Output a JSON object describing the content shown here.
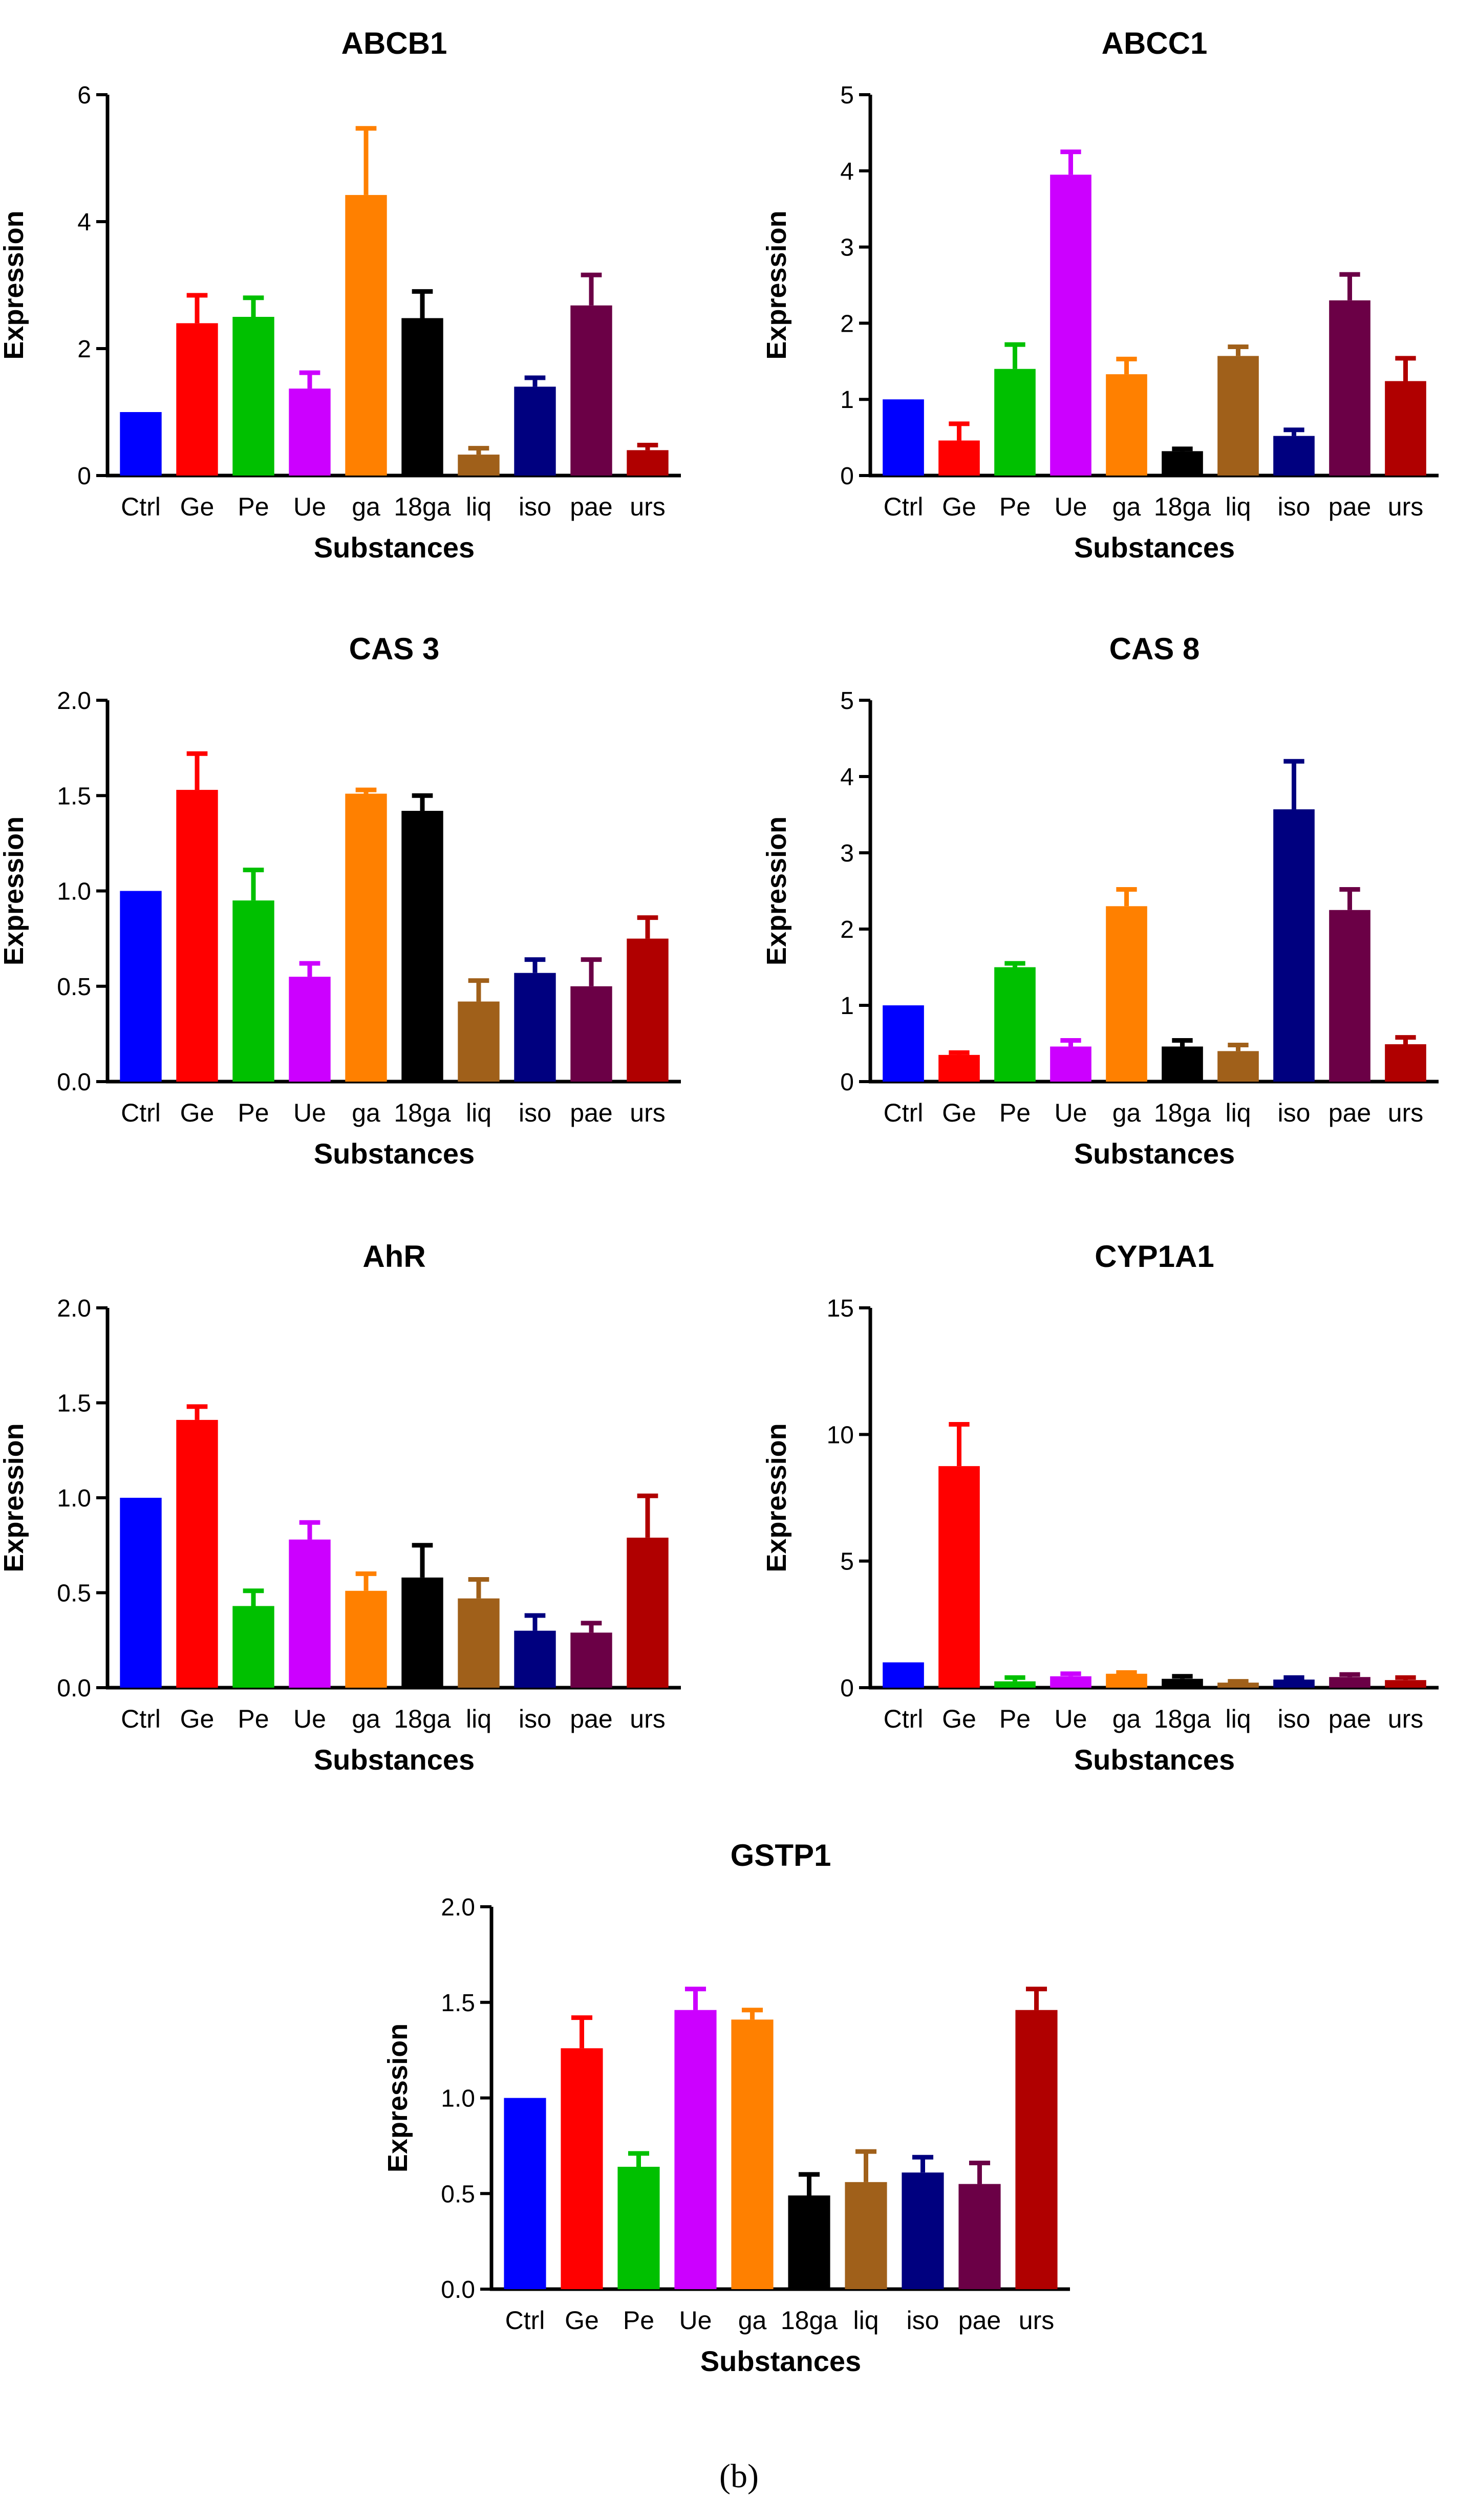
{
  "figure": {
    "caption": "(b)"
  },
  "colors": [
    "#0000ff",
    "#ff0000",
    "#00c000",
    "#cc00ff",
    "#ff8000",
    "#000000",
    "#a0601a",
    "#00007f",
    "#6b0046",
    "#b00000"
  ],
  "chart_data": [
    {
      "type": "bar",
      "title": "ABCB1",
      "xlabel": "Substances",
      "ylabel": "Expression",
      "categories": [
        "Ctrl",
        "Ge",
        "Pe",
        "Ue",
        "ga",
        "18ga",
        "liq",
        "iso",
        "pae",
        "urs"
      ],
      "values": [
        1.0,
        2.4,
        2.5,
        1.37,
        4.42,
        2.48,
        0.33,
        1.4,
        2.68,
        0.4
      ],
      "errors": [
        0,
        0.44,
        0.3,
        0.25,
        1.05,
        0.42,
        0.1,
        0.14,
        0.48,
        0.08
      ],
      "ylim": [
        0,
        6
      ],
      "yticks": [
        "0",
        "2",
        "4",
        "6"
      ]
    },
    {
      "type": "bar",
      "title": "ABCC1",
      "xlabel": "Substances",
      "ylabel": "Expression",
      "categories": [
        "Ctrl",
        "Ge",
        "Pe",
        "Ue",
        "ga",
        "18ga",
        "liq",
        "iso",
        "pae",
        "urs"
      ],
      "values": [
        1.0,
        0.46,
        1.4,
        3.95,
        1.33,
        0.32,
        1.57,
        0.52,
        2.3,
        1.24
      ],
      "errors": [
        0,
        0.22,
        0.32,
        0.3,
        0.2,
        0.03,
        0.12,
        0.08,
        0.34,
        0.3
      ],
      "ylim": [
        0,
        5
      ],
      "yticks": [
        "0",
        "1",
        "2",
        "3",
        "4",
        "5"
      ]
    },
    {
      "type": "bar",
      "title": "CAS 3",
      "xlabel": "Substances",
      "ylabel": "Expression",
      "categories": [
        "Ctrl",
        "Ge",
        "Pe",
        "Ue",
        "ga",
        "18ga",
        "liq",
        "iso",
        "pae",
        "urs"
      ],
      "values": [
        1.0,
        1.53,
        0.95,
        0.55,
        1.51,
        1.42,
        0.42,
        0.57,
        0.5,
        0.75
      ],
      "errors": [
        0,
        0.19,
        0.16,
        0.07,
        0.02,
        0.08,
        0.11,
        0.07,
        0.14,
        0.11
      ],
      "ylim": [
        0,
        2
      ],
      "yticks": [
        "0.0",
        "0.5",
        "1.0",
        "1.5",
        "2.0"
      ]
    },
    {
      "type": "bar",
      "title": "CAS 8",
      "xlabel": "Substances",
      "ylabel": "Expression",
      "categories": [
        "Ctrl",
        "Ge",
        "Pe",
        "Ue",
        "ga",
        "18ga",
        "liq",
        "iso",
        "pae",
        "urs"
      ],
      "values": [
        1.0,
        0.35,
        1.5,
        0.46,
        2.3,
        0.46,
        0.4,
        3.57,
        2.25,
        0.49
      ],
      "errors": [
        0,
        0.03,
        0.05,
        0.08,
        0.22,
        0.08,
        0.08,
        0.63,
        0.27,
        0.09
      ],
      "ylim": [
        0,
        5
      ],
      "yticks": [
        "0",
        "1",
        "2",
        "3",
        "4",
        "5"
      ]
    },
    {
      "type": "bar",
      "title": "AhR",
      "xlabel": "Substances",
      "ylabel": "Expression",
      "categories": [
        "Ctrl",
        "Ge",
        "Pe",
        "Ue",
        "ga",
        "18ga",
        "liq",
        "iso",
        "pae",
        "urs"
      ],
      "values": [
        1.0,
        1.41,
        0.43,
        0.78,
        0.51,
        0.58,
        0.47,
        0.3,
        0.29,
        0.79
      ],
      "errors": [
        0,
        0.07,
        0.08,
        0.09,
        0.09,
        0.17,
        0.1,
        0.08,
        0.05,
        0.22
      ],
      "ylim": [
        0,
        2
      ],
      "yticks": [
        "0.0",
        "0.5",
        "1.0",
        "1.5",
        "2.0"
      ]
    },
    {
      "type": "bar",
      "title": "CYP1A1",
      "xlabel": "Substances",
      "ylabel": "Expression",
      "categories": [
        "Ctrl",
        "Ge",
        "Pe",
        "Ue",
        "ga",
        "18ga",
        "liq",
        "iso",
        "pae",
        "urs"
      ],
      "values": [
        1.0,
        8.75,
        0.25,
        0.45,
        0.55,
        0.35,
        0.2,
        0.32,
        0.42,
        0.3
      ],
      "errors": [
        0,
        1.65,
        0.15,
        0.1,
        0.05,
        0.1,
        0.05,
        0.08,
        0.1,
        0.1
      ],
      "ylim": [
        0,
        15
      ],
      "yticks": [
        "0",
        "5",
        "10",
        "15"
      ]
    },
    {
      "type": "bar",
      "title": "GSTP1",
      "xlabel": "Substances",
      "ylabel": "Expression",
      "categories": [
        "Ctrl",
        "Ge",
        "Pe",
        "Ue",
        "ga",
        "18ga",
        "liq",
        "iso",
        "pae",
        "urs"
      ],
      "values": [
        1.0,
        1.26,
        0.64,
        1.46,
        1.41,
        0.49,
        0.56,
        0.61,
        0.55,
        1.46
      ],
      "errors": [
        0,
        0.16,
        0.07,
        0.11,
        0.05,
        0.11,
        0.16,
        0.08,
        0.11,
        0.11
      ],
      "ylim": [
        0,
        2
      ],
      "yticks": [
        "0.0",
        "0.5",
        "1.0",
        "1.5",
        "2.0"
      ]
    }
  ]
}
